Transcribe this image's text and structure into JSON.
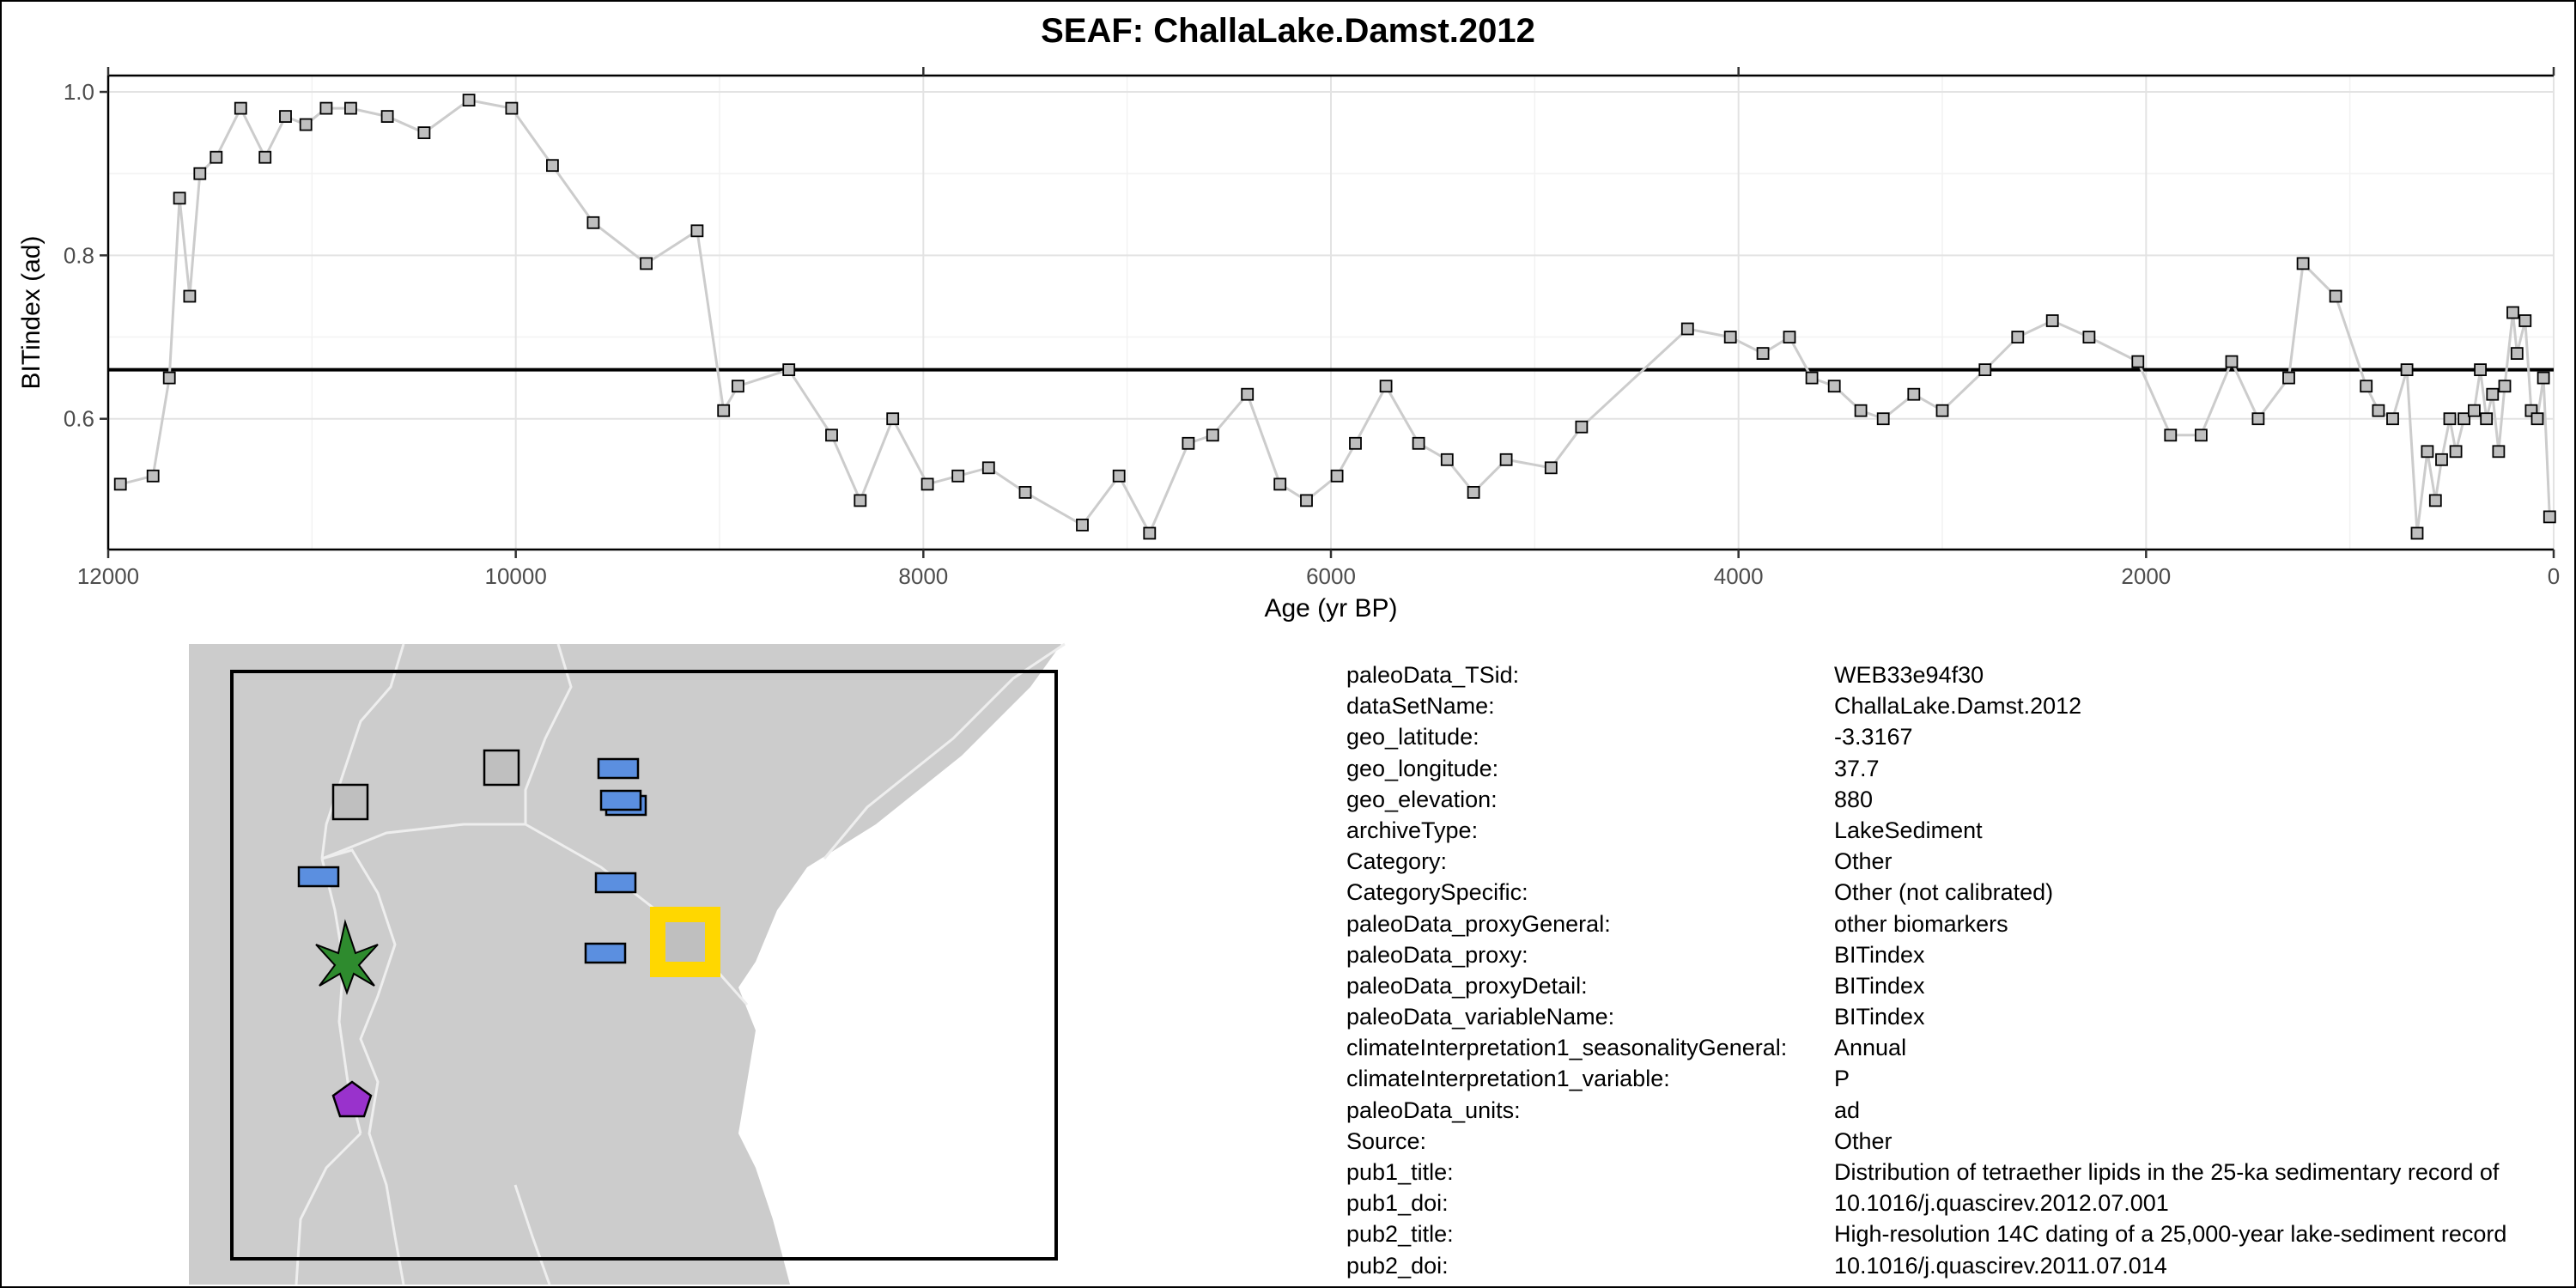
{
  "title": "SEAF: ChallaLake.Damst.2012",
  "chart_data": {
    "type": "line",
    "xlabel": "Age (yr BP)",
    "ylabel": "BITindex (ad)",
    "xlim": [
      12000,
      0
    ],
    "ylim": [
      0.44,
      1.02
    ],
    "x_reversed": true,
    "x_ticks": [
      12000,
      10000,
      8000,
      6000,
      4000,
      2000,
      0
    ],
    "y_ticks": [
      0.6,
      0.8,
      1.0
    ],
    "y_tick_labels": [
      "0.6",
      "0.8",
      "1.0"
    ],
    "grid": true,
    "reference_line": 0.66,
    "colors": {
      "line": "#cccccc",
      "marker_fill": "#bfbfbf",
      "reference": "#000000"
    },
    "x": [
      11940,
      11780,
      11700,
      11650,
      11600,
      11550,
      11470,
      11350,
      11230,
      11130,
      11030,
      10930,
      10810,
      10630,
      10450,
      10230,
      10020,
      9820,
      9620,
      9360,
      9110,
      8980,
      8910,
      8660,
      8450,
      8310,
      8150,
      7980,
      7830,
      7680,
      7500,
      7220,
      7040,
      6890,
      6700,
      6580,
      6410,
      6250,
      6120,
      5970,
      5880,
      5730,
      5570,
      5430,
      5300,
      5140,
      4920,
      4770,
      4250,
      4040,
      3880,
      3750,
      3640,
      3530,
      3400,
      3290,
      3140,
      3000,
      2790,
      2630,
      2460,
      2280,
      2040,
      1880,
      1730,
      1580,
      1450,
      1300,
      1230,
      1070,
      920,
      860,
      790,
      720,
      670,
      620,
      580,
      550,
      510,
      480,
      440,
      390,
      360,
      330,
      300,
      270,
      240,
      200,
      180,
      140,
      110,
      80,
      50,
      20
    ],
    "y": [
      0.52,
      0.53,
      0.65,
      0.87,
      0.75,
      0.9,
      0.92,
      0.98,
      0.92,
      0.97,
      0.96,
      0.98,
      0.98,
      0.97,
      0.95,
      0.99,
      0.98,
      0.91,
      0.84,
      0.79,
      0.83,
      0.61,
      0.64,
      0.66,
      0.58,
      0.5,
      0.6,
      0.52,
      0.53,
      0.54,
      0.51,
      0.47,
      0.53,
      0.46,
      0.57,
      0.58,
      0.63,
      0.52,
      0.5,
      0.53,
      0.57,
      0.64,
      0.57,
      0.55,
      0.51,
      0.55,
      0.54,
      0.59,
      0.71,
      0.7,
      0.68,
      0.7,
      0.65,
      0.64,
      0.61,
      0.6,
      0.63,
      0.61,
      0.66,
      0.7,
      0.72,
      0.7,
      0.67,
      0.58,
      0.58,
      0.67,
      0.6,
      0.65,
      0.79,
      0.75,
      0.64,
      0.61,
      0.6,
      0.66,
      0.46,
      0.56,
      0.5,
      0.55,
      0.6,
      0.56,
      0.6,
      0.61,
      0.66,
      0.6,
      0.63,
      0.56,
      0.64,
      0.73,
      0.68,
      0.72,
      0.61,
      0.6,
      0.65,
      0.48
    ]
  },
  "map": {
    "land_color": "#cccccc",
    "water_color": "#ffffff",
    "markers": [
      {
        "shape": "square",
        "color": "#bfbfbf",
        "lon_frac": 0.32,
        "lat_frac": 0.18
      },
      {
        "shape": "square",
        "color": "#bfbfbf",
        "lon_frac": 0.14,
        "lat_frac": 0.2
      },
      {
        "shape": "rectangle",
        "color": "#5b8fe0",
        "lon_frac": 0.47,
        "lat_frac": 0.16
      },
      {
        "shape": "rectangle",
        "color": "#5b8fe0",
        "lon_frac": 0.48,
        "lat_frac": 0.21
      },
      {
        "shape": "rectangle",
        "color": "#5b8fe0",
        "lon_frac": 0.48,
        "lat_frac": 0.23
      },
      {
        "shape": "rectangle",
        "color": "#5b8fe0",
        "lon_frac": 0.1,
        "lat_frac": 0.33
      },
      {
        "shape": "rectangle",
        "color": "#5b8fe0",
        "lon_frac": 0.46,
        "lat_frac": 0.34
      },
      {
        "shape": "rectangle",
        "color": "#5b8fe0",
        "lon_frac": 0.45,
        "lat_frac": 0.46
      },
      {
        "shape": "highlight-square",
        "color": "#ffd700",
        "lon_frac": 0.55,
        "lat_frac": 0.45
      },
      {
        "shape": "tree",
        "color": "#2e8b2e",
        "lon_frac": 0.14,
        "lat_frac": 0.46
      },
      {
        "shape": "pentagon",
        "color": "#9932cc",
        "lon_frac": 0.15,
        "lat_frac": 0.71
      }
    ]
  },
  "metadata": [
    {
      "key": "paleoData_TSid:",
      "value": "WEB33e94f30"
    },
    {
      "key": "dataSetName:",
      "value": "ChallaLake.Damst.2012"
    },
    {
      "key": "geo_latitude:",
      "value": "-3.3167"
    },
    {
      "key": "geo_longitude:",
      "value": "37.7"
    },
    {
      "key": "geo_elevation:",
      "value": "880"
    },
    {
      "key": "archiveType:",
      "value": "LakeSediment"
    },
    {
      "key": "Category:",
      "value": "Other"
    },
    {
      "key": "CategorySpecific:",
      "value": "Other (not calibrated)"
    },
    {
      "key": "paleoData_proxyGeneral:",
      "value": "other biomarkers"
    },
    {
      "key": "paleoData_proxy:",
      "value": "BITindex"
    },
    {
      "key": "paleoData_proxyDetail:",
      "value": "BITindex"
    },
    {
      "key": "paleoData_variableName:",
      "value": "BITindex"
    },
    {
      "key": "climateInterpretation1_seasonalityGeneral:",
      "value": "Annual"
    },
    {
      "key": "climateInterpretation1_variable:",
      "value": "P"
    },
    {
      "key": "paleoData_units:",
      "value": "ad"
    },
    {
      "key": "Source:",
      "value": "Other"
    },
    {
      "key": "pub1_title:",
      "value": "Distribution of tetraether lipids in the 25-ka sedimentary record of"
    },
    {
      "key": "pub1_doi:",
      "value": "10.1016/j.quascirev.2012.07.001"
    },
    {
      "key": "pub2_title:",
      "value": "High-resolution 14C dating of a 25,000-year lake-sediment record"
    },
    {
      "key": "pub2_doi:",
      "value": "10.1016/j.quascirev.2011.07.014"
    }
  ]
}
